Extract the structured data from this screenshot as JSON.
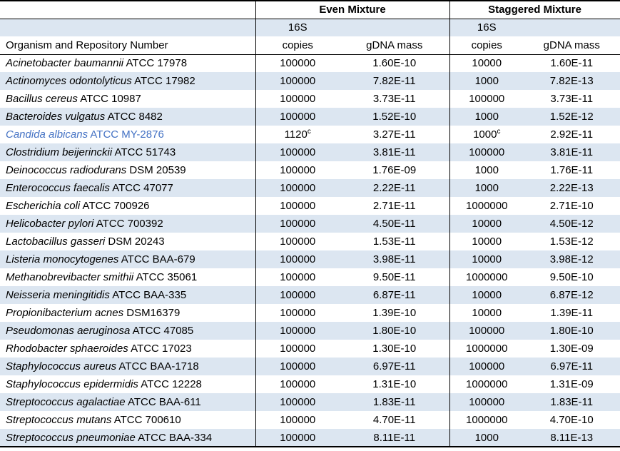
{
  "colors": {
    "band": "#DCE6F1",
    "border": "#000000",
    "candida_blue": "#4472C4"
  },
  "table": {
    "groups": {
      "even": "Even Mixture",
      "staggered": "Staggered Mixture"
    },
    "headers": {
      "organism": "Organism and Repository Number",
      "s16": "16S",
      "copies": "copies",
      "gdna": "gDNA mass"
    },
    "rows": [
      {
        "name": "Acinetobacter baumannii",
        "repo": "ATCC 17978",
        "even_copies": "100000",
        "even_mass": "1.60E-10",
        "stag_copies": "10000",
        "stag_mass": "1.60E-11"
      },
      {
        "name": "Actinomyces odontolyticus",
        "repo": "ATCC 17982",
        "even_copies": "100000",
        "even_mass": "7.82E-11",
        "stag_copies": "1000",
        "stag_mass": "7.82E-13"
      },
      {
        "name": "Bacillus cereus",
        "repo": "ATCC 10987",
        "even_copies": "100000",
        "even_mass": "3.73E-11",
        "stag_copies": "100000",
        "stag_mass": "3.73E-11"
      },
      {
        "name": "Bacteroides vulgatus",
        "repo": "ATCC 8482",
        "even_copies": "100000",
        "even_mass": "1.52E-10",
        "stag_copies": "1000",
        "stag_mass": "1.52E-12"
      },
      {
        "name": "Candida albicans",
        "repo": "ATCC MY-2876",
        "even_copies": "1120",
        "even_copies_sup": "c",
        "even_mass": "3.27E-11",
        "stag_copies": "1000",
        "stag_copies_sup": "c",
        "stag_mass": "2.92E-11",
        "blue": true
      },
      {
        "name": "Clostridium beijerinckii",
        "repo": "ATCC 51743",
        "even_copies": "100000",
        "even_mass": "3.81E-11",
        "stag_copies": "100000",
        "stag_mass": "3.81E-11"
      },
      {
        "name": "Deinococcus radiodurans",
        "repo": "DSM 20539",
        "even_copies": "100000",
        "even_mass": "1.76E-09",
        "stag_copies": "1000",
        "stag_mass": "1.76E-11"
      },
      {
        "name": "Enterococcus faecalis",
        "repo": "ATCC 47077",
        "even_copies": "100000",
        "even_mass": "2.22E-11",
        "stag_copies": "1000",
        "stag_mass": "2.22E-13"
      },
      {
        "name": "Escherichia coli",
        "repo": "ATCC 700926",
        "even_copies": "100000",
        "even_mass": "2.71E-11",
        "stag_copies": "1000000",
        "stag_mass": "2.71E-10"
      },
      {
        "name": "Helicobacter pylori",
        "repo": "ATCC 700392",
        "even_copies": "100000",
        "even_mass": "4.50E-11",
        "stag_copies": "10000",
        "stag_mass": "4.50E-12"
      },
      {
        "name": "Lactobacillus gasseri",
        "repo": "DSM 20243",
        "even_copies": "100000",
        "even_mass": "1.53E-11",
        "stag_copies": "10000",
        "stag_mass": "1.53E-12"
      },
      {
        "name": "Listeria monocytogenes",
        "repo": "ATCC BAA-679",
        "even_copies": "100000",
        "even_mass": "3.98E-11",
        "stag_copies": "10000",
        "stag_mass": "3.98E-12"
      },
      {
        "name": "Methanobrevibacter smithii",
        "repo": "ATCC 35061",
        "even_copies": "100000",
        "even_mass": "9.50E-11",
        "stag_copies": "1000000",
        "stag_mass": "9.50E-10"
      },
      {
        "name": "Neisseria meningitidis",
        "repo": "ATCC BAA-335",
        "even_copies": "100000",
        "even_mass": "6.87E-11",
        "stag_copies": "10000",
        "stag_mass": "6.87E-12"
      },
      {
        "name": "Propionibacterium acnes",
        "repo": "DSM16379",
        "even_copies": "100000",
        "even_mass": "1.39E-10",
        "stag_copies": "10000",
        "stag_mass": "1.39E-11"
      },
      {
        "name": "Pseudomonas aeruginosa",
        "repo": "ATCC 47085",
        "even_copies": "100000",
        "even_mass": "1.80E-10",
        "stag_copies": "100000",
        "stag_mass": "1.80E-10"
      },
      {
        "name": "Rhodobacter sphaeroides",
        "repo": "ATCC 17023",
        "even_copies": "100000",
        "even_mass": "1.30E-10",
        "stag_copies": "1000000",
        "stag_mass": "1.30E-09"
      },
      {
        "name": "Staphylococcus aureus",
        "repo": "ATCC BAA-1718",
        "even_copies": "100000",
        "even_mass": "6.97E-11",
        "stag_copies": "100000",
        "stag_mass": "6.97E-11"
      },
      {
        "name": "Staphylococcus epidermidis",
        "repo": "ATCC 12228",
        "even_copies": "100000",
        "even_mass": "1.31E-10",
        "stag_copies": "1000000",
        "stag_mass": "1.31E-09"
      },
      {
        "name": "Streptococcus agalactiae",
        "repo": "ATCC BAA-611",
        "even_copies": "100000",
        "even_mass": "1.83E-11",
        "stag_copies": "100000",
        "stag_mass": "1.83E-11"
      },
      {
        "name": "Streptococcus mutans",
        "repo": "ATCC 700610",
        "even_copies": "100000",
        "even_mass": "4.70E-11",
        "stag_copies": "1000000",
        "stag_mass": "4.70E-10"
      },
      {
        "name": "Streptococcus pneumoniae",
        "repo": "ATCC BAA-334",
        "even_copies": "100000",
        "even_mass": "8.11E-11",
        "stag_copies": "1000",
        "stag_mass": "8.11E-13"
      }
    ]
  },
  "chart_data": {
    "type": "table",
    "column_groups": [
      "",
      "Even Mixture",
      "Staggered Mixture"
    ],
    "columns": [
      "Organism and Repository Number",
      "Even Mixture 16S copies",
      "Even Mixture gDNA mass",
      "Staggered Mixture 16S copies",
      "Staggered Mixture gDNA mass"
    ],
    "rows": [
      [
        "Acinetobacter baumannii ATCC 17978",
        "100000",
        "1.60E-10",
        "10000",
        "1.60E-11"
      ],
      [
        "Actinomyces odontolyticus ATCC 17982",
        "100000",
        "7.82E-11",
        "1000",
        "7.82E-13"
      ],
      [
        "Bacillus cereus ATCC 10987",
        "100000",
        "3.73E-11",
        "100000",
        "3.73E-11"
      ],
      [
        "Bacteroides vulgatus ATCC 8482",
        "100000",
        "1.52E-10",
        "1000",
        "1.52E-12"
      ],
      [
        "Candida albicans ATCC MY-2876",
        "1120ᶜ",
        "3.27E-11",
        "1000ᶜ",
        "2.92E-11"
      ],
      [
        "Clostridium beijerinckii ATCC 51743",
        "100000",
        "3.81E-11",
        "100000",
        "3.81E-11"
      ],
      [
        "Deinococcus radiodurans DSM 20539",
        "100000",
        "1.76E-09",
        "1000",
        "1.76E-11"
      ],
      [
        "Enterococcus faecalis ATCC 47077",
        "100000",
        "2.22E-11",
        "1000",
        "2.22E-13"
      ],
      [
        "Escherichia coli ATCC 700926",
        "100000",
        "2.71E-11",
        "1000000",
        "2.71E-10"
      ],
      [
        "Helicobacter pylori ATCC 700392",
        "100000",
        "4.50E-11",
        "10000",
        "4.50E-12"
      ],
      [
        "Lactobacillus gasseri DSM 20243",
        "100000",
        "1.53E-11",
        "10000",
        "1.53E-12"
      ],
      [
        "Listeria monocytogenes ATCC BAA-679",
        "100000",
        "3.98E-11",
        "10000",
        "3.98E-12"
      ],
      [
        "Methanobrevibacter smithii ATCC 35061",
        "100000",
        "9.50E-11",
        "1000000",
        "9.50E-10"
      ],
      [
        "Neisseria meningitidis ATCC BAA-335",
        "100000",
        "6.87E-11",
        "10000",
        "6.87E-12"
      ],
      [
        "Propionibacterium acnes DSM16379",
        "100000",
        "1.39E-10",
        "10000",
        "1.39E-11"
      ],
      [
        "Pseudomonas aeruginosa ATCC 47085",
        "100000",
        "1.80E-10",
        "100000",
        "1.80E-10"
      ],
      [
        "Rhodobacter sphaeroides ATCC 17023",
        "100000",
        "1.30E-10",
        "1000000",
        "1.30E-09"
      ],
      [
        "Staphylococcus aureus ATCC BAA-1718",
        "100000",
        "6.97E-11",
        "100000",
        "6.97E-11"
      ],
      [
        "Staphylococcus epidermidis ATCC 12228",
        "100000",
        "1.31E-10",
        "1000000",
        "1.31E-09"
      ],
      [
        "Streptococcus agalactiae ATCC BAA-611",
        "100000",
        "1.83E-11",
        "100000",
        "1.83E-11"
      ],
      [
        "Streptococcus mutans ATCC 700610",
        "100000",
        "4.70E-11",
        "1000000",
        "4.70E-10"
      ],
      [
        "Streptococcus pneumoniae ATCC BAA-334",
        "100000",
        "8.11E-11",
        "1000",
        "8.11E-13"
      ]
    ]
  }
}
